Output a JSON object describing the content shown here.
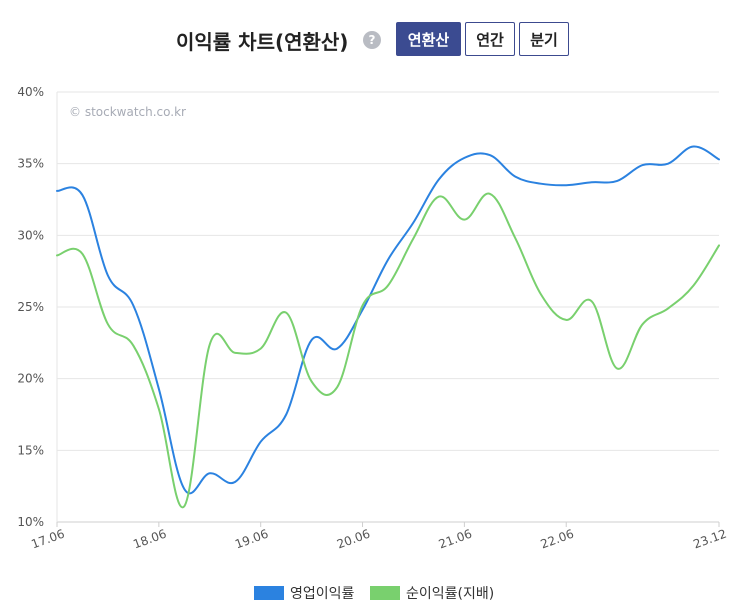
{
  "header": {
    "title": "이익률 차트(연환산)",
    "help_icon": "?",
    "tabs": [
      {
        "label": "연환산",
        "active": true
      },
      {
        "label": "연간",
        "active": false
      },
      {
        "label": "분기",
        "active": false
      }
    ]
  },
  "watermark": "© stockwatch.co.kr",
  "colors": {
    "accent": "#3b4b91",
    "series1": "#2b82e0",
    "series2": "#79d06e",
    "grid": "#e6e6e6"
  },
  "chart_data": {
    "type": "line",
    "title": "",
    "xlabel": "",
    "ylabel": "",
    "ylim": [
      10,
      40
    ],
    "yticks": [
      {
        "value": 40,
        "label": "40%"
      },
      {
        "value": 35,
        "label": "35%"
      },
      {
        "value": 30,
        "label": "30%"
      },
      {
        "value": 25,
        "label": "25%"
      },
      {
        "value": 20,
        "label": "20%"
      },
      {
        "value": 15,
        "label": "15%"
      },
      {
        "value": 10,
        "label": "10%"
      }
    ],
    "x": [
      "17.06",
      "17.09",
      "17.12",
      "18.03",
      "18.06",
      "18.09",
      "18.12",
      "19.03",
      "19.06",
      "19.09",
      "19.12",
      "20.03",
      "20.06",
      "20.09",
      "20.12",
      "21.03",
      "21.06",
      "21.09",
      "21.12",
      "22.03",
      "22.06",
      "22.09",
      "22.12",
      "23.03",
      "23.06",
      "23.09",
      "23.12"
    ],
    "xticks": [
      "17.06",
      "18.06",
      "19.06",
      "20.06",
      "21.06",
      "22.06",
      "23.12"
    ],
    "series": [
      {
        "name": "영업이익률",
        "color": "#2b82e0",
        "values": [
          33.1,
          32.8,
          27.2,
          25.1,
          19.3,
          12.3,
          13.4,
          12.8,
          15.6,
          17.5,
          22.7,
          22.1,
          24.8,
          28.3,
          30.9,
          33.9,
          35.4,
          35.6,
          34.1,
          33.6,
          33.5,
          33.7,
          33.8,
          34.9,
          35.0,
          36.2,
          35.3
        ]
      },
      {
        "name": "순이익률(지배)",
        "color": "#79d06e",
        "values": [
          28.6,
          28.7,
          23.8,
          22.3,
          17.9,
          11.1,
          22.4,
          21.8,
          22.1,
          24.6,
          19.8,
          19.4,
          25.1,
          26.5,
          29.8,
          32.7,
          31.1,
          32.9,
          29.8,
          25.9,
          24.1,
          25.4,
          20.7,
          23.8,
          24.9,
          26.5,
          29.3
        ]
      }
    ],
    "grid": true,
    "legend": "bottom"
  }
}
